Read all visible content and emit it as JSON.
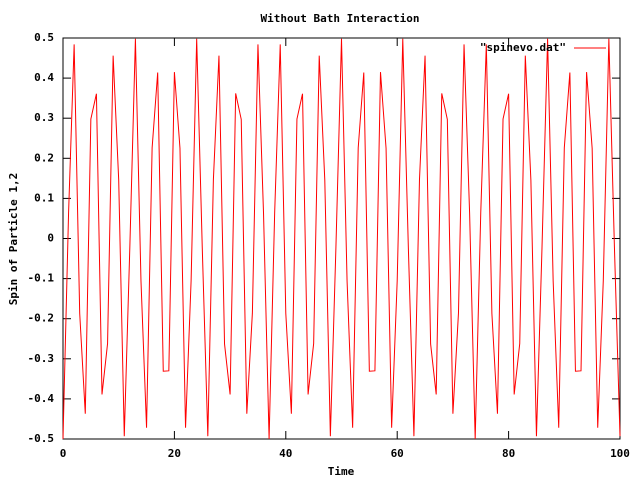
{
  "chart_data": {
    "type": "line",
    "title": "Without Bath Interaction",
    "xlabel": "Time",
    "ylabel": "Spin of Particle 1,2",
    "legend_position": "top-right",
    "xlim": [
      0,
      100
    ],
    "xticks": [
      0,
      20,
      40,
      60,
      80,
      100
    ],
    "ylim": [
      -0.5,
      0.5
    ],
    "yticks": [
      -0.5,
      -0.4,
      -0.3,
      -0.2,
      -0.1,
      0,
      0.1,
      0.2,
      0.3,
      0.4,
      0.5
    ],
    "x": [
      0,
      1,
      2,
      3,
      4,
      5,
      6,
      7,
      8,
      9,
      10,
      11,
      12,
      13,
      14,
      15,
      16,
      17,
      18,
      19,
      20,
      21,
      22,
      23,
      24,
      25,
      26,
      27,
      28,
      29,
      30,
      31,
      32,
      33,
      34,
      35,
      36,
      37,
      38,
      39,
      40,
      41,
      42,
      43,
      44,
      45,
      46,
      47,
      48,
      49,
      50,
      51,
      52,
      53,
      54,
      55,
      56,
      57,
      58,
      59,
      60,
      61,
      62,
      63,
      64,
      65,
      66,
      67,
      68,
      69,
      70,
      71,
      72,
      73,
      74,
      75,
      76,
      77,
      78,
      79,
      80,
      81,
      82,
      83,
      84,
      85,
      86,
      87,
      88,
      89,
      90,
      91,
      92,
      93,
      94,
      95,
      96,
      97,
      98,
      99,
      100
    ],
    "series": [
      {
        "name": "\"spinevo.dat\"",
        "color": "#ff0000",
        "values": [
          -0.5,
          0.064,
          0.484,
          -0.187,
          -0.437,
          0.298,
          0.361,
          -0.389,
          -0.262,
          0.456,
          0.146,
          -0.493,
          -0.021,
          0.498,
          -0.106,
          -0.472,
          0.226,
          0.414,
          -0.331,
          -0.33,
          0.415,
          0.225,
          -0.472,
          -0.105,
          0.498,
          -0.022,
          -0.493,
          0.147,
          0.456,
          -0.263,
          -0.389,
          0.362,
          0.297,
          -0.437,
          -0.186,
          0.484,
          0.063,
          -0.5,
          0.064,
          0.484,
          -0.187,
          -0.437,
          0.298,
          0.361,
          -0.389,
          -0.262,
          0.456,
          0.146,
          -0.493,
          -0.021,
          0.498,
          -0.106,
          -0.472,
          0.226,
          0.414,
          -0.331,
          -0.33,
          0.415,
          0.225,
          -0.472,
          -0.105,
          0.498,
          -0.022,
          -0.493,
          0.147,
          0.456,
          -0.263,
          -0.389,
          0.362,
          0.297,
          -0.437,
          -0.186,
          0.484,
          0.063,
          -0.5,
          0.064,
          0.484,
          -0.187,
          -0.437,
          0.298,
          0.361,
          -0.389,
          -0.262,
          0.456,
          0.146,
          -0.493,
          -0.021,
          0.498,
          -0.106,
          -0.472,
          0.226,
          0.414,
          -0.331,
          -0.33,
          0.415,
          0.225,
          -0.472,
          -0.105,
          0.498,
          -0.022,
          -0.493
        ]
      }
    ]
  }
}
